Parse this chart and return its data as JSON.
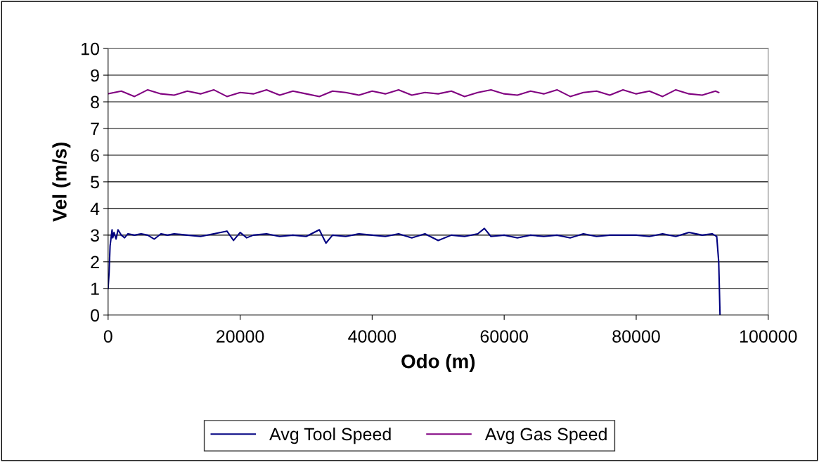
{
  "chart_data": {
    "type": "line",
    "xlabel": "Odo (m)",
    "ylabel": "Vel (m/s)",
    "xlim": [
      0,
      100000
    ],
    "xticks": [
      0,
      20000,
      40000,
      60000,
      80000,
      100000
    ],
    "ylim": [
      0,
      10
    ],
    "yticks": [
      0,
      1,
      2,
      3,
      4,
      5,
      6,
      7,
      8,
      9,
      10
    ],
    "grid": "y",
    "legend": "bottom",
    "marker": "none",
    "line_style": "solid",
    "series": [
      {
        "name": "Avg Tool Speed",
        "color": "#000080",
        "x": [
          0,
          150,
          300,
          450,
          600,
          700,
          900,
          1200,
          1500,
          2000,
          2500,
          3000,
          4000,
          5000,
          6000,
          7000,
          8000,
          9000,
          10000,
          12000,
          14000,
          16000,
          18000,
          19000,
          20000,
          21000,
          22000,
          24000,
          26000,
          28000,
          30000,
          32000,
          33000,
          34000,
          36000,
          38000,
          40000,
          42000,
          44000,
          46000,
          48000,
          50000,
          52000,
          54000,
          56000,
          57000,
          58000,
          60000,
          62000,
          64000,
          66000,
          68000,
          70000,
          72000,
          74000,
          76000,
          78000,
          80000,
          82000,
          84000,
          86000,
          88000,
          90000,
          91500,
          92200,
          92500,
          92600,
          92700
        ],
        "values": [
          1.0,
          1.6,
          2.6,
          2.9,
          3.2,
          2.9,
          3.1,
          2.85,
          3.2,
          3.0,
          2.9,
          3.05,
          3.0,
          3.05,
          3.0,
          2.85,
          3.05,
          3.0,
          3.05,
          3.0,
          2.95,
          3.05,
          3.15,
          2.8,
          3.1,
          2.9,
          3.0,
          3.05,
          2.95,
          3.0,
          2.95,
          3.2,
          2.7,
          3.0,
          2.95,
          3.05,
          3.0,
          2.95,
          3.05,
          2.9,
          3.05,
          2.8,
          3.0,
          2.95,
          3.05,
          3.25,
          2.95,
          3.0,
          2.9,
          3.0,
          2.95,
          3.0,
          2.9,
          3.05,
          2.95,
          3.0,
          3.0,
          3.0,
          2.95,
          3.05,
          2.95,
          3.1,
          3.0,
          3.05,
          2.95,
          2.0,
          1.0,
          0
        ]
      },
      {
        "name": "Avg Gas Speed",
        "color": "#800080",
        "x": [
          0,
          2000,
          4000,
          6000,
          8000,
          10000,
          12000,
          14000,
          16000,
          18000,
          20000,
          22000,
          24000,
          26000,
          28000,
          30000,
          32000,
          34000,
          36000,
          38000,
          40000,
          42000,
          44000,
          46000,
          48000,
          50000,
          52000,
          54000,
          56000,
          58000,
          60000,
          62000,
          64000,
          66000,
          68000,
          70000,
          72000,
          74000,
          76000,
          78000,
          80000,
          82000,
          84000,
          86000,
          88000,
          90000,
          92000,
          92500
        ],
        "values": [
          8.3,
          8.4,
          8.2,
          8.45,
          8.3,
          8.25,
          8.4,
          8.3,
          8.45,
          8.2,
          8.35,
          8.3,
          8.45,
          8.25,
          8.4,
          8.3,
          8.2,
          8.4,
          8.35,
          8.25,
          8.4,
          8.3,
          8.45,
          8.25,
          8.35,
          8.3,
          8.4,
          8.2,
          8.35,
          8.45,
          8.3,
          8.25,
          8.4,
          8.3,
          8.45,
          8.2,
          8.35,
          8.4,
          8.25,
          8.45,
          8.3,
          8.4,
          8.2,
          8.45,
          8.3,
          8.25,
          8.4,
          8.35
        ]
      }
    ]
  }
}
